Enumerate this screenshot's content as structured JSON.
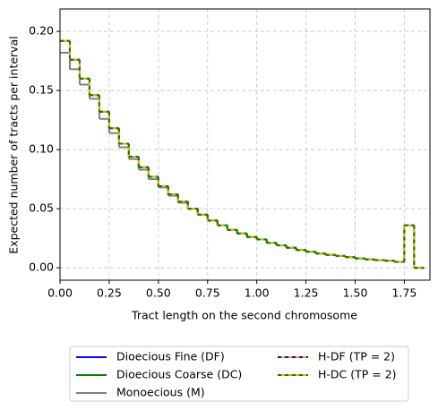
{
  "chart_data": {
    "type": "step",
    "xlabel": "Tract length on the second chromosome",
    "ylabel": "Expected number of tracts per interval",
    "x": [
      0,
      0.05,
      0.1,
      0.15,
      0.2,
      0.25,
      0.3,
      0.35,
      0.4,
      0.45,
      0.5,
      0.55,
      0.6,
      0.65,
      0.7,
      0.75,
      0.8,
      0.85,
      0.9,
      0.95,
      1.0,
      1.05,
      1.1,
      1.15,
      1.2,
      1.25,
      1.3,
      1.35,
      1.4,
      1.45,
      1.5,
      1.55,
      1.6,
      1.65,
      1.7,
      1.75,
      1.8,
      1.85
    ],
    "series": [
      {
        "name": "Dioecious Fine (DF)",
        "color": "#0000ff",
        "values": [
          0.192,
          0.176,
          0.16,
          0.146,
          0.132,
          0.118,
          0.105,
          0.094,
          0.085,
          0.077,
          0.069,
          0.062,
          0.056,
          0.05,
          0.045,
          0.04,
          0.036,
          0.032,
          0.029,
          0.026,
          0.024,
          0.021,
          0.019,
          0.017,
          0.015,
          0.0135,
          0.012,
          0.011,
          0.01,
          0.009,
          0.008,
          0.007,
          0.0065,
          0.006,
          0.005,
          0.036,
          0,
          0
        ]
      },
      {
        "name": "Dioecious Coarse (DC)",
        "color": "#008000",
        "values": [
          0.192,
          0.176,
          0.16,
          0.146,
          0.132,
          0.118,
          0.105,
          0.094,
          0.085,
          0.077,
          0.069,
          0.062,
          0.056,
          0.05,
          0.045,
          0.04,
          0.036,
          0.032,
          0.029,
          0.026,
          0.024,
          0.021,
          0.019,
          0.017,
          0.015,
          0.0135,
          0.012,
          0.011,
          0.01,
          0.009,
          0.008,
          0.007,
          0.0065,
          0.006,
          0.005,
          0.036,
          0,
          0
        ]
      },
      {
        "name": "Monoecious (M)",
        "color": "#808080",
        "values": [
          0.182,
          0.168,
          0.155,
          0.143,
          0.126,
          0.114,
          0.102,
          0.092,
          0.083,
          0.075,
          0.068,
          0.061,
          0.055,
          0.05,
          0.045,
          0.04,
          0.036,
          0.032,
          0.029,
          0.026,
          0.024,
          0.021,
          0.019,
          0.017,
          0.015,
          0.0135,
          0.012,
          0.011,
          0.01,
          0.009,
          0.008,
          0.007,
          0.0065,
          0.006,
          0.005,
          0.036,
          0,
          0
        ]
      },
      {
        "name": "H-DF (TP = 2)",
        "color": "#ffa500",
        "dash_color": "#0000ff",
        "values": [
          0.192,
          0.176,
          0.16,
          0.146,
          0.132,
          0.118,
          0.105,
          0.094,
          0.085,
          0.077,
          0.069,
          0.062,
          0.056,
          0.05,
          0.045,
          0.04,
          0.036,
          0.032,
          0.029,
          0.026,
          0.024,
          0.021,
          0.019,
          0.017,
          0.015,
          0.0135,
          0.012,
          0.011,
          0.01,
          0.009,
          0.008,
          0.007,
          0.0065,
          0.006,
          0.005,
          0.036,
          0,
          0
        ]
      },
      {
        "name": "H-DC (TP = 2)",
        "color": "#ffa500",
        "dash_color": "#008000",
        "values": [
          0.192,
          0.176,
          0.16,
          0.146,
          0.132,
          0.118,
          0.105,
          0.094,
          0.085,
          0.077,
          0.069,
          0.062,
          0.056,
          0.05,
          0.045,
          0.04,
          0.036,
          0.032,
          0.029,
          0.026,
          0.024,
          0.021,
          0.019,
          0.017,
          0.015,
          0.0135,
          0.012,
          0.011,
          0.01,
          0.009,
          0.008,
          0.007,
          0.0065,
          0.006,
          0.005,
          0.036,
          0,
          0
        ]
      }
    ],
    "xlim": [
      0,
      1.88
    ],
    "ylim": [
      -0.0105,
      0.219
    ],
    "xticks": [
      {
        "value": 0,
        "label": "0.00"
      },
      {
        "value": 0.25,
        "label": "0.25"
      },
      {
        "value": 0.5,
        "label": "0.50"
      },
      {
        "value": 0.75,
        "label": "0.75"
      },
      {
        "value": 1,
        "label": "1.00"
      },
      {
        "value": 1.25,
        "label": "1.25"
      },
      {
        "value": 1.5,
        "label": "1.50"
      },
      {
        "value": 1.75,
        "label": "1.75"
      }
    ],
    "yticks": [
      {
        "value": 0,
        "label": "0.00"
      },
      {
        "value": 0.05,
        "label": "0.05"
      },
      {
        "value": 0.1,
        "label": "0.10"
      },
      {
        "value": 0.15,
        "label": "0.15"
      },
      {
        "value": 0.2,
        "label": "0.20"
      }
    ],
    "grid": true,
    "legend_columns": 2
  }
}
